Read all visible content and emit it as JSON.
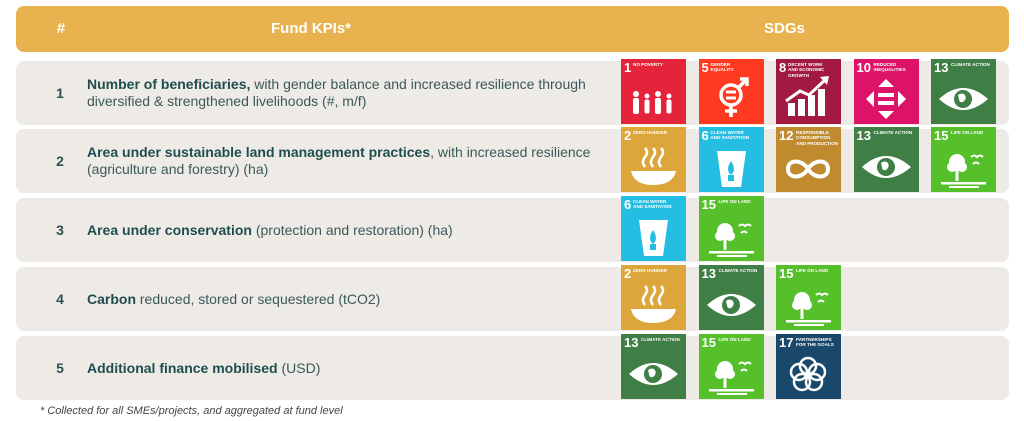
{
  "header": {
    "num": "#",
    "kpis": "Fund KPIs*",
    "sdgs": "SDGs"
  },
  "rows": [
    {
      "num": "1",
      "bold": "Number of beneficiaries,",
      "rest": " with gender balance and increased resilience through diversified & strengthened livelihoods (#, m/f)",
      "sdgs": [
        {
          "n": "1",
          "label": "NO POVERTY",
          "color": "#e5243b",
          "icon": "people-icon"
        },
        {
          "n": "5",
          "label": "GENDER EQUALITY",
          "color": "#ff3a21",
          "icon": "gender-equality-icon"
        },
        {
          "n": "8",
          "label": "DECENT WORK AND ECONOMIC GROWTH",
          "color": "#a21942",
          "icon": "growth-chart-icon"
        },
        {
          "n": "10",
          "label": "REDUCED INEQUALITIES",
          "color": "#dd1367",
          "icon": "equal-arrows-icon"
        },
        {
          "n": "13",
          "label": "CLIMATE ACTION",
          "color": "#3f7e44",
          "icon": "eye-globe-icon"
        }
      ]
    },
    {
      "num": "2",
      "bold": "Area under sustainable land management practices",
      "rest": ", with increased resilience (agriculture and forestry) (ha)",
      "sdgs": [
        {
          "n": "2",
          "label": "ZERO HUNGER",
          "color": "#dda63a",
          "icon": "bowl-icon"
        },
        {
          "n": "6",
          "label": "CLEAN WATER AND SANITATION",
          "color": "#26bde2",
          "icon": "water-glass-icon"
        },
        {
          "n": "12",
          "label": "RESPONSIBLE CONSUMPTION AND PRODUCTION",
          "color": "#bf8b2e",
          "icon": "infinity-icon"
        },
        {
          "n": "13",
          "label": "CLIMATE ACTION",
          "color": "#3f7e44",
          "icon": "eye-globe-icon"
        },
        {
          "n": "15",
          "label": "LIFE ON LAND",
          "color": "#56c02b",
          "icon": "tree-icon"
        }
      ]
    },
    {
      "num": "3",
      "bold": "Area under conservation",
      "rest": " (protection and restoration) (ha)",
      "sdgs": [
        {
          "n": "6",
          "label": "CLEAN WATER AND SANITATION",
          "color": "#26bde2",
          "icon": "water-glass-icon"
        },
        {
          "n": "15",
          "label": "LIFE ON LAND",
          "color": "#56c02b",
          "icon": "tree-icon"
        }
      ]
    },
    {
      "num": "4",
      "bold": "Carbon",
      "rest": " reduced, stored or sequestered (tCO2)",
      "sdgs": [
        {
          "n": "2",
          "label": "ZERO HUNGER",
          "color": "#dda63a",
          "icon": "bowl-icon"
        },
        {
          "n": "13",
          "label": "CLIMATE ACTION",
          "color": "#3f7e44",
          "icon": "eye-globe-icon"
        },
        {
          "n": "15",
          "label": "LIFE ON LAND",
          "color": "#56c02b",
          "icon": "tree-icon"
        }
      ]
    },
    {
      "num": "5",
      "bold": "Additional finance mobilised",
      "rest": " (USD)",
      "sdgs": [
        {
          "n": "13",
          "label": "CLIMATE ACTION",
          "color": "#3f7e44",
          "icon": "eye-globe-icon"
        },
        {
          "n": "15",
          "label": "LIFE ON LAND",
          "color": "#56c02b",
          "icon": "tree-icon"
        },
        {
          "n": "17",
          "label": "PARTNERSHIPS FOR THE GOALS",
          "color": "#19486a",
          "icon": "partnership-rings-icon"
        }
      ]
    }
  ],
  "footnote": "* Collected for all SMEs/projects, and aggregated at fund level"
}
